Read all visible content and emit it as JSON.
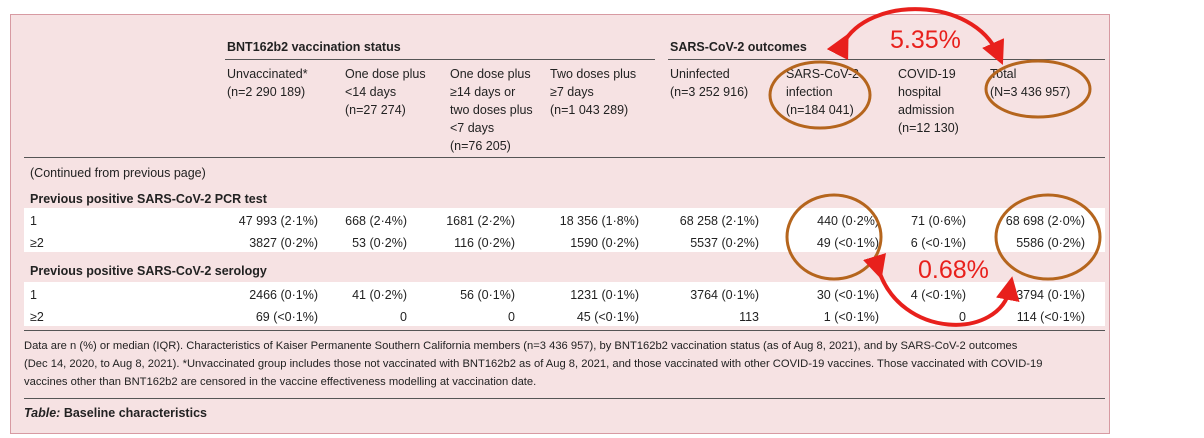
{
  "table": {
    "group_vacc": "BNT162b2 vaccination status",
    "group_outcomes": "SARS-CoV-2 outcomes",
    "columns": [
      [
        "Unvaccinated*",
        "(n=2 290 189)"
      ],
      [
        "One dose plus",
        "<14 days",
        "(n=27 274)"
      ],
      [
        "One dose plus",
        "≥14 days or",
        "two doses plus",
        "<7 days",
        "(n=76 205)"
      ],
      [
        "Two doses plus",
        "≥7 days",
        "(n=1 043 289)"
      ],
      [
        "Uninfected",
        "(n=3 252 916)"
      ],
      [
        "SARS-CoV-2",
        "infection",
        "(n=184 041)"
      ],
      [
        "COVID-19",
        "hospital",
        "admission",
        "(n=12 130)"
      ],
      [
        "Total",
        "(N=3 436 957)"
      ]
    ],
    "continued": "(Continued from previous page)",
    "sections": [
      {
        "title": "Previous positive SARS-CoV-2 PCR test",
        "rows": [
          {
            "label": "1",
            "cells": [
              "47 993 (2·1%)",
              "668 (2·4%)",
              "1681 (2·2%)",
              "18 356 (1·8%)",
              "68 258 (2·1%)",
              "440 (0·2%)",
              "71 (0·6%)",
              "68 698 (2·0%)"
            ]
          },
          {
            "label": "≥2",
            "cells": [
              "3827 (0·2%)",
              "53 (0·2%)",
              "116 (0·2%)",
              "1590 (0·2%)",
              "5537 (0·2%)",
              "49 (<0·1%)",
              "6 (<0·1%)",
              "5586 (0·2%)"
            ]
          }
        ]
      },
      {
        "title": "Previous positive SARS-CoV-2 serology",
        "rows": [
          {
            "label": "1",
            "cells": [
              "2466 (0·1%)",
              "41 (0·2%)",
              "56 (0·1%)",
              "1231 (0·1%)",
              "3764 (0·1%)",
              "30 (<0·1%)",
              "4 (<0·1%)",
              "3794 (0·1%)"
            ]
          },
          {
            "label": "≥2",
            "cells": [
              "69 (<0·1%)",
              "0",
              "0",
              "45 (<0·1%)",
              "113",
              "1 (<0·1%)",
              "0",
              "114 (<0·1%)"
            ]
          }
        ]
      }
    ],
    "footnote": [
      "Data are n (%) or median (IQR). Characteristics of Kaiser Permanente Southern California members (n=3 436 957), by BNT162b2 vaccination status (as of Aug 8, 2021), and by SARS-CoV-2 outcomes",
      "(Dec 14, 2020, to Aug 8, 2021). *Unvaccinated group includes those not vaccinated with BNT162b2 as of Aug 8, 2021, and those vaccinated with other COVID-19 vaccines. Those vaccinated with COVID-19",
      "vaccines other than BNT162b2 are censored in the vaccine effectiveness modelling at vaccination date."
    ],
    "caption_italic": "Table:",
    "caption_rest": " Baseline characteristics"
  },
  "annotations": {
    "top_pct": "5.35%",
    "bottom_pct": "0.68%",
    "circle_color": "#b5651d",
    "arrow_color": "#e8201c"
  }
}
